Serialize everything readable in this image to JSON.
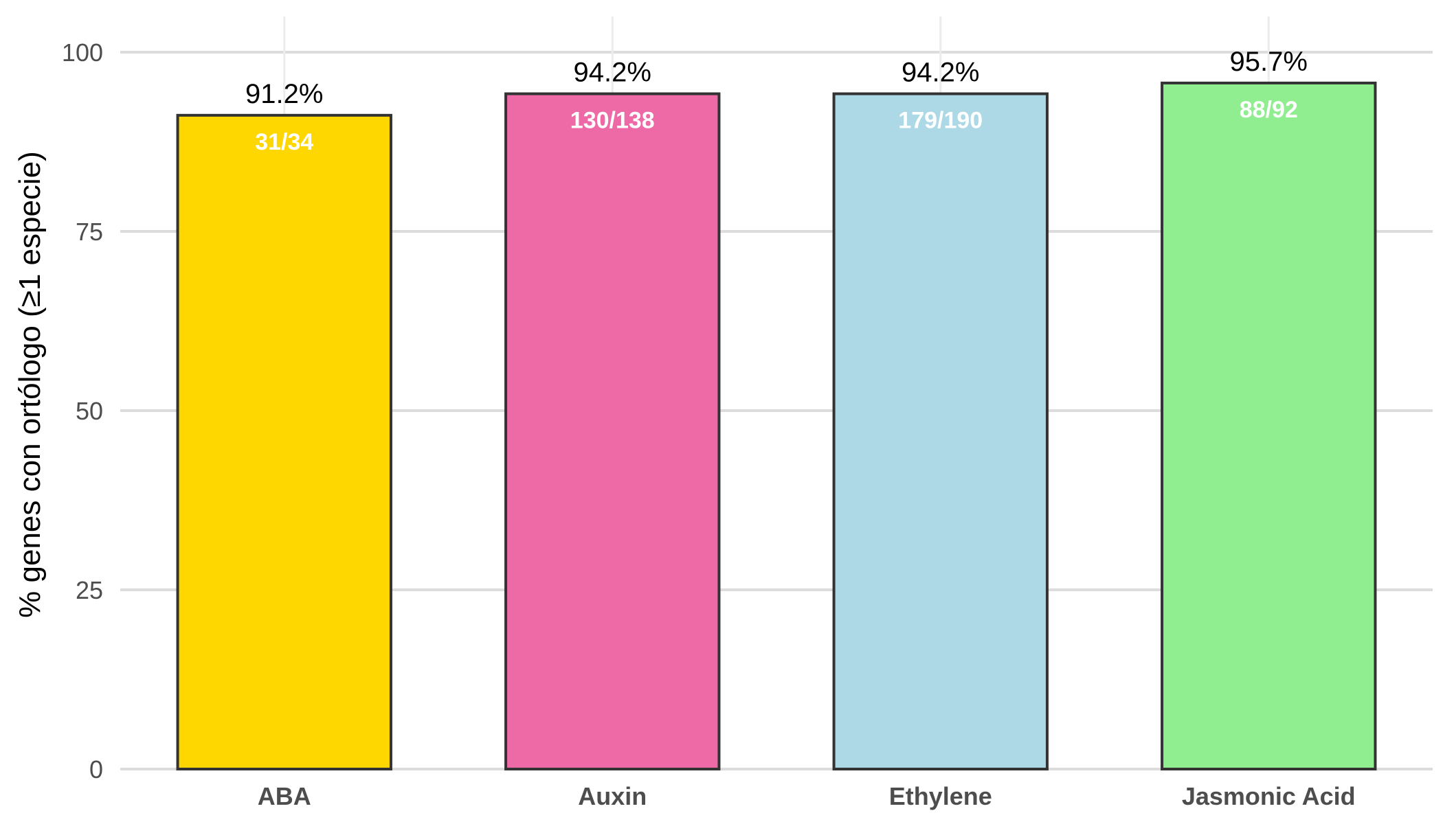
{
  "chart_data": {
    "type": "bar",
    "categories": [
      "ABA",
      "Auxin",
      "Ethylene",
      "Jasmonic Acid"
    ],
    "values": [
      91.2,
      94.2,
      94.2,
      95.7
    ],
    "value_labels": [
      "91.2%",
      "94.2%",
      "94.2%",
      "95.7%"
    ],
    "count_labels": [
      "31/34",
      "130/138",
      "179/190",
      "88/92"
    ],
    "colors": [
      "#FFD700",
      "#EE6AA7",
      "#ADD8E6",
      "#90EE90"
    ],
    "ylabel": "% genes con ortólogo (≥1 especie)",
    "ylim": [
      0,
      100
    ],
    "yticks": [
      0,
      25,
      50,
      75,
      100
    ],
    "grid": true,
    "legend": "none"
  }
}
